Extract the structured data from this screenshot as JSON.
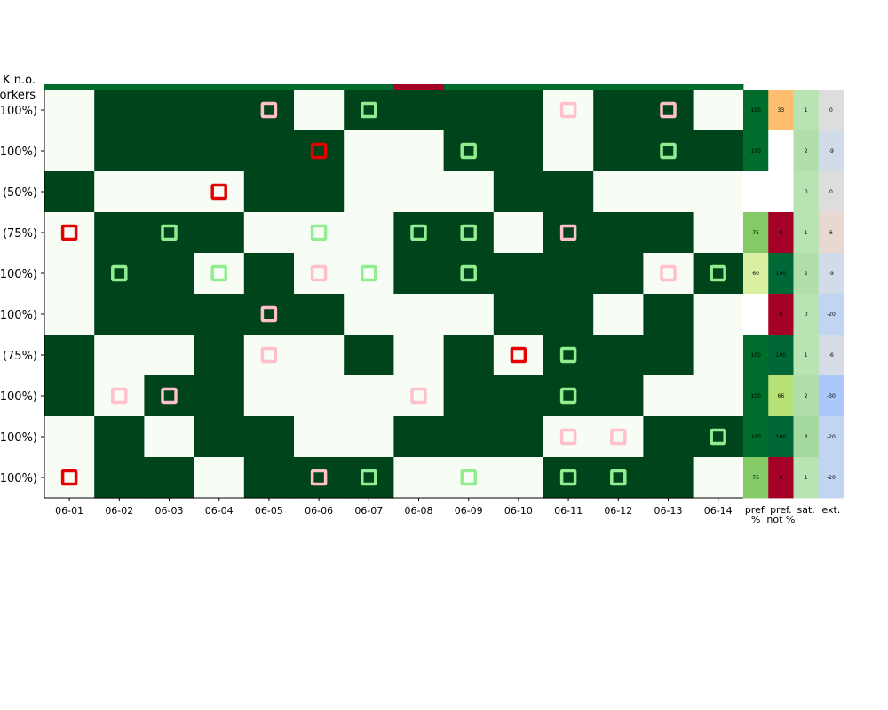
{
  "chart_data": {
    "type": "heatmap",
    "corner_label": [
      "K n.o.",
      "orkers"
    ],
    "columns": [
      "06-01",
      "06-02",
      "06-03",
      "06-04",
      "06-05",
      "06-06",
      "06-07",
      "06-08",
      "06-09",
      "06-10",
      "06-11",
      "06-12",
      "06-13",
      "06-14"
    ],
    "rows": [
      "100%)",
      "100%)",
      "(50%)",
      "(75%)",
      "100%)",
      "100%)",
      "(75%)",
      "100%)",
      "100%)",
      "100%)"
    ],
    "top_strip": [
      0,
      0,
      0,
      0,
      0,
      0,
      0,
      1,
      0,
      0,
      0,
      0,
      0,
      0
    ],
    "grid": [
      [
        0,
        1,
        1,
        1,
        1,
        0,
        1,
        1,
        1,
        1,
        0,
        1,
        1,
        0
      ],
      [
        0,
        1,
        1,
        1,
        1,
        1,
        0,
        0,
        1,
        1,
        0,
        1,
        1,
        1
      ],
      [
        1,
        0,
        0,
        0,
        1,
        1,
        0,
        0,
        0,
        1,
        1,
        0,
        0,
        0
      ],
      [
        0,
        1,
        1,
        1,
        0,
        0,
        0,
        1,
        1,
        0,
        1,
        1,
        1,
        0
      ],
      [
        0,
        1,
        1,
        0,
        1,
        0,
        0,
        1,
        1,
        1,
        1,
        1,
        0,
        1
      ],
      [
        0,
        1,
        1,
        1,
        1,
        1,
        0,
        0,
        0,
        1,
        1,
        0,
        1,
        0
      ],
      [
        1,
        0,
        0,
        1,
        0,
        0,
        1,
        0,
        1,
        0,
        1,
        1,
        1,
        0
      ],
      [
        1,
        0,
        1,
        1,
        0,
        0,
        0,
        0,
        1,
        1,
        1,
        1,
        0,
        0
      ],
      [
        0,
        1,
        0,
        1,
        1,
        0,
        0,
        1,
        1,
        1,
        0,
        0,
        1,
        1
      ],
      [
        0,
        1,
        1,
        0,
        1,
        1,
        1,
        0,
        0,
        0,
        1,
        1,
        1,
        0
      ]
    ],
    "markers": [
      {
        "row": 0,
        "col": 4,
        "kind": "pink"
      },
      {
        "row": 0,
        "col": 6,
        "kind": "green"
      },
      {
        "row": 0,
        "col": 10,
        "kind": "pink"
      },
      {
        "row": 0,
        "col": 12,
        "kind": "pink"
      },
      {
        "row": 1,
        "col": 5,
        "kind": "red"
      },
      {
        "row": 1,
        "col": 8,
        "kind": "green"
      },
      {
        "row": 1,
        "col": 12,
        "kind": "green"
      },
      {
        "row": 2,
        "col": 3,
        "kind": "red"
      },
      {
        "row": 3,
        "col": 0,
        "kind": "red"
      },
      {
        "row": 3,
        "col": 2,
        "kind": "green"
      },
      {
        "row": 3,
        "col": 5,
        "kind": "green"
      },
      {
        "row": 3,
        "col": 7,
        "kind": "green"
      },
      {
        "row": 3,
        "col": 8,
        "kind": "green"
      },
      {
        "row": 3,
        "col": 10,
        "kind": "pink"
      },
      {
        "row": 4,
        "col": 1,
        "kind": "green"
      },
      {
        "row": 4,
        "col": 3,
        "kind": "green"
      },
      {
        "row": 4,
        "col": 5,
        "kind": "pink"
      },
      {
        "row": 4,
        "col": 6,
        "kind": "green"
      },
      {
        "row": 4,
        "col": 8,
        "kind": "green"
      },
      {
        "row": 4,
        "col": 12,
        "kind": "pink"
      },
      {
        "row": 4,
        "col": 13,
        "kind": "green"
      },
      {
        "row": 5,
        "col": 4,
        "kind": "pink"
      },
      {
        "row": 6,
        "col": 4,
        "kind": "pink"
      },
      {
        "row": 6,
        "col": 9,
        "kind": "red"
      },
      {
        "row": 6,
        "col": 10,
        "kind": "green"
      },
      {
        "row": 7,
        "col": 1,
        "kind": "pink"
      },
      {
        "row": 7,
        "col": 2,
        "kind": "pink"
      },
      {
        "row": 7,
        "col": 7,
        "kind": "pink"
      },
      {
        "row": 7,
        "col": 10,
        "kind": "green"
      },
      {
        "row": 8,
        "col": 10,
        "kind": "pink"
      },
      {
        "row": 8,
        "col": 11,
        "kind": "pink"
      },
      {
        "row": 8,
        "col": 13,
        "kind": "green"
      },
      {
        "row": 9,
        "col": 0,
        "kind": "red"
      },
      {
        "row": 9,
        "col": 5,
        "kind": "pink"
      },
      {
        "row": 9,
        "col": 6,
        "kind": "green"
      },
      {
        "row": 9,
        "col": 8,
        "kind": "green"
      },
      {
        "row": 9,
        "col": 10,
        "kind": "green"
      },
      {
        "row": 9,
        "col": 11,
        "kind": "green"
      }
    ],
    "summary_columns": [
      {
        "label": [
          "pref.",
          "%"
        ],
        "values": [
          "100",
          "100",
          "",
          "75",
          "60",
          "",
          "100",
          "100",
          "100",
          "75"
        ],
        "colors": [
          "#006d2c",
          "#006d2c",
          "#ffffff",
          "#84ca66",
          "#d9f0a3",
          "#ffffff",
          "#006d2c",
          "#006d2c",
          "#006d2c",
          "#84ca66"
        ]
      },
      {
        "label": [
          "pref.",
          "not %"
        ],
        "values": [
          "33",
          "",
          "",
          "0",
          "100",
          "0",
          "100",
          "66",
          "100",
          "0"
        ],
        "colors": [
          "#fdbf6f",
          "#ffffff",
          "#ffffff",
          "#a50026",
          "#006837",
          "#a50026",
          "#006837",
          "#b7e075",
          "#006837",
          "#a50026"
        ]
      },
      {
        "label": [
          "sat.",
          ""
        ],
        "values": [
          "1",
          "2",
          "0",
          "1",
          "2",
          "0",
          "1",
          "2",
          "3",
          "1"
        ],
        "colors": [
          "#b8e3b2",
          "#b0dfaa",
          "#b8e3b2",
          "#b8e3b2",
          "#b0dfaa",
          "#b8e3b2",
          "#b8e3b2",
          "#b0dfaa",
          "#a3d99c",
          "#b8e3b2"
        ]
      },
      {
        "label": [
          "ext.",
          ""
        ],
        "values": [
          "0",
          "-9",
          "0",
          "6",
          "-9",
          "-20",
          "-6",
          "-30",
          "-20",
          "-20"
        ],
        "colors": [
          "#dddddd",
          "#d2dbe8",
          "#dddddd",
          "#e8d8d0",
          "#d2dbe8",
          "#c1d4f2",
          "#d6dce6",
          "#aac8fb",
          "#c1d4f2",
          "#c1d4f2"
        ]
      }
    ],
    "colors": {
      "on": "#00441b",
      "off": "#f7fcf5",
      "strip_on": "#006d2c",
      "strip_alert": "#a50026",
      "marker_red": "#e60000",
      "marker_green": "#90ee90",
      "marker_pink": "#ffc0cb"
    }
  }
}
